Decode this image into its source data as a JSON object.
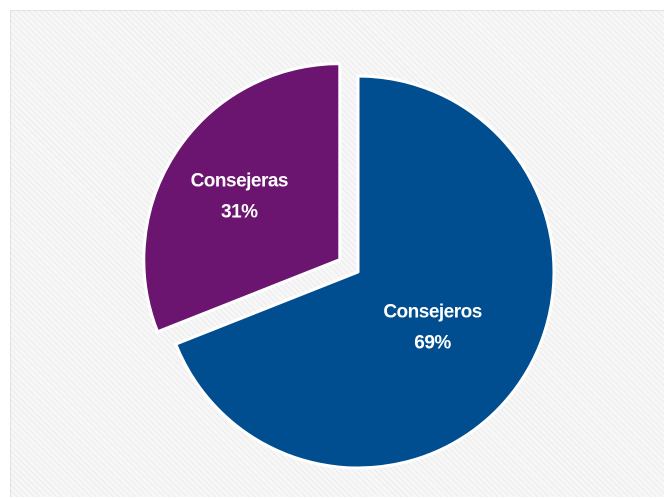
{
  "chart_data": {
    "type": "pie",
    "title": "",
    "slices": [
      {
        "label": "Consejeros",
        "value": 69,
        "value_label": "69%",
        "color": "#004d8f"
      },
      {
        "label": "Consejeras",
        "value": 31,
        "value_label": "31%",
        "color": "#6b1470"
      }
    ],
    "exploded": "Consejeras",
    "legend": "none"
  }
}
